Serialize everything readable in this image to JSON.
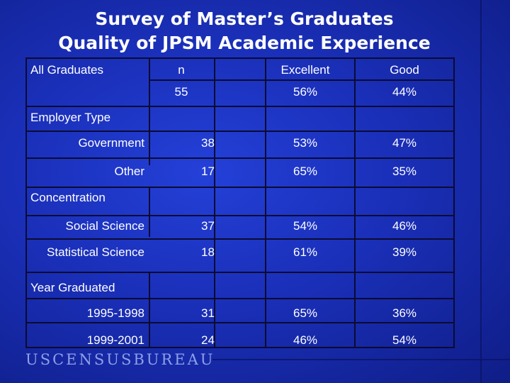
{
  "title": {
    "line1": "Survey of Master’s Graduates",
    "line2": "Quality of JPSM Academic Experience"
  },
  "table": {
    "columns": [
      "n",
      "Excellent",
      "Good"
    ],
    "all_graduates": {
      "label": "All Graduates",
      "values": [
        "55",
        "56%",
        "44%"
      ]
    },
    "sections": [
      {
        "header": "Employer Type",
        "rows": [
          {
            "label": "Government",
            "values": [
              "38",
              "53%",
              "47%"
            ]
          },
          {
            "label": "Other",
            "values": [
              "17",
              "65%",
              "35%"
            ]
          }
        ]
      },
      {
        "header": "Concentration",
        "rows": [
          {
            "label": "Social Science",
            "values": [
              "37",
              "54%",
              "46%"
            ]
          },
          {
            "label": "Statistical Science",
            "values": [
              "18",
              "61%",
              "39%"
            ]
          }
        ]
      },
      {
        "header": "Year Graduated",
        "rows": [
          {
            "label": "1995-1998",
            "values": [
              "31",
              "65%",
              "36%"
            ]
          },
          {
            "label": "1999-2001",
            "values": [
              "24",
              "46%",
              "54%"
            ]
          }
        ]
      }
    ]
  },
  "logo": {
    "text": "USCENSUSBUREAU",
    "color": "#8fa0e8"
  },
  "colors": {
    "background": "#1a2fb8",
    "grid": "#0b0b33",
    "text": "#ffffff"
  }
}
